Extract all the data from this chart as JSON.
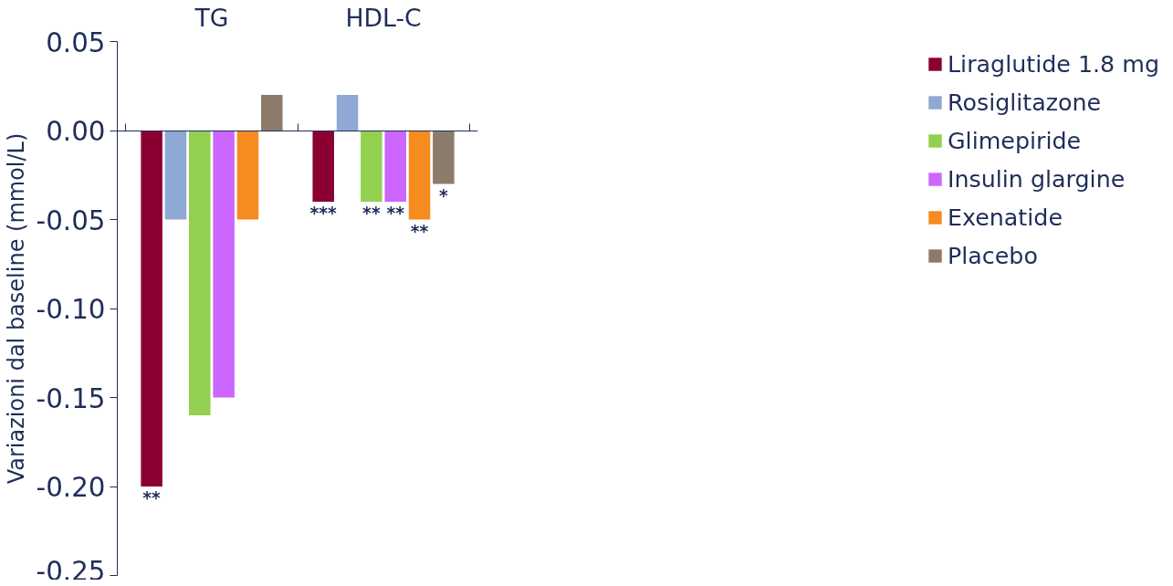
{
  "chart_data": {
    "type": "bar",
    "categories": [
      "TG",
      "HDL-C"
    ],
    "ylabel": "Variazioni dal baseline (mmol/L)",
    "ylim": [
      -0.25,
      0.05
    ],
    "yticks": [
      {
        "value": -0.25,
        "label": "-0.25"
      },
      {
        "value": -0.2,
        "label": "-0.20"
      },
      {
        "value": -0.15,
        "label": "-0.15"
      },
      {
        "value": -0.1,
        "label": "-0.10"
      },
      {
        "value": -0.05,
        "label": "-0.05"
      },
      {
        "value": 0,
        "label": "0.00"
      },
      {
        "value": 0.05,
        "label": "0.05"
      }
    ],
    "grid": false,
    "legend": "right",
    "series": [
      {
        "name": "Liraglutide 1.8 mg",
        "color": "#8b0033",
        "values": [
          -0.2,
          -0.04
        ],
        "value_labels": [
          "**",
          "***"
        ]
      },
      {
        "name": "Rosiglitazone",
        "color": "#8fa8d4",
        "values": [
          -0.05,
          0.02
        ],
        "value_labels": [
          null,
          null
        ]
      },
      {
        "name": "Glimepiride",
        "color": "#92d050",
        "values": [
          -0.16,
          -0.04
        ],
        "value_labels": [
          null,
          "**"
        ]
      },
      {
        "name": "Insulin glargine",
        "color": "#cc66ff",
        "values": [
          -0.15,
          -0.04
        ],
        "value_labels": [
          null,
          "**"
        ]
      },
      {
        "name": "Exenatide",
        "color": "#f68b1f",
        "values": [
          -0.05,
          -0.05
        ],
        "value_labels": [
          null,
          "**"
        ]
      },
      {
        "name": "Placebo",
        "color": "#8c7b6b",
        "values": [
          0.02,
          -0.03
        ],
        "value_labels": [
          null,
          "*"
        ]
      }
    ]
  }
}
